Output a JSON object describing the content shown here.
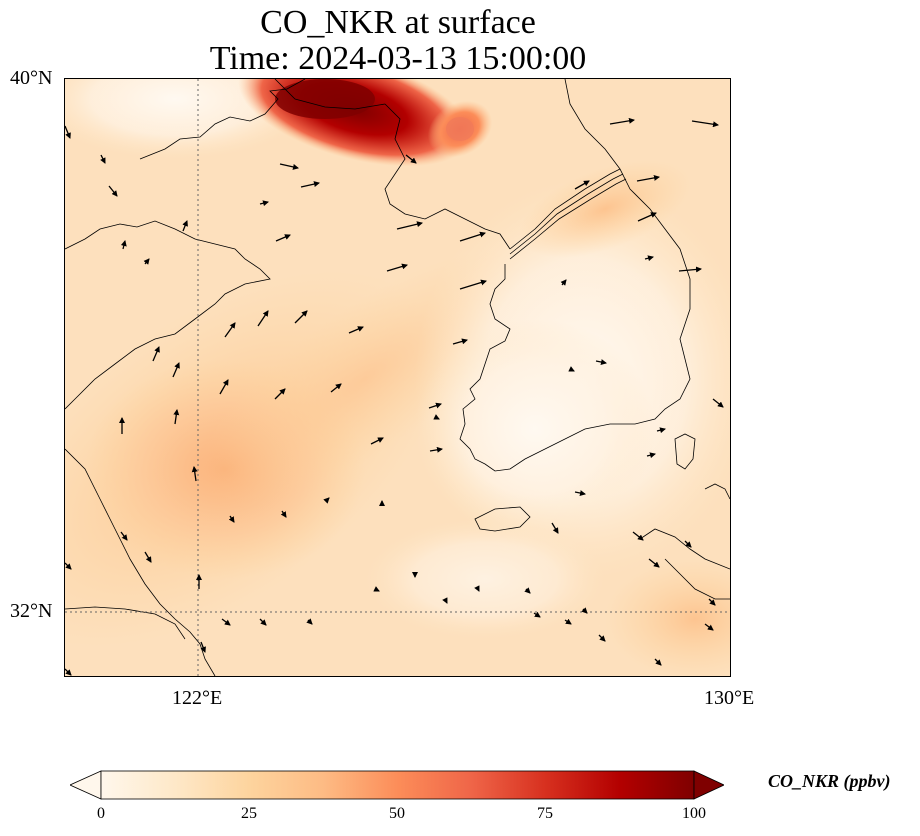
{
  "title": {
    "line1": "CO_NKR at surface",
    "line2": "Time: 2024-03-13 15:00:00"
  },
  "map": {
    "lat_labels": [
      "40°N",
      "32°N"
    ],
    "lon_labels": [
      "122°E",
      "130°E"
    ],
    "lat_range": [
      31,
      40
    ],
    "lon_range": [
      120,
      130
    ],
    "gridlines": "dotted",
    "projection": "plate-carree",
    "field": "CO_NKR concentration (ppbv), surface layer",
    "overlay": "wind vectors"
  },
  "colorbar": {
    "label": "CO_NKR (ppbv)",
    "ticks": [
      "0",
      "25",
      "50",
      "75",
      "100"
    ],
    "range": [
      0,
      100
    ],
    "colormap": "OrRd",
    "extend": "both",
    "colors": [
      "#fff7ec",
      "#fee8c8",
      "#fdd49e",
      "#fdbb84",
      "#fc8d59",
      "#ef6548",
      "#d7301f",
      "#b30000",
      "#7f0000"
    ]
  }
}
